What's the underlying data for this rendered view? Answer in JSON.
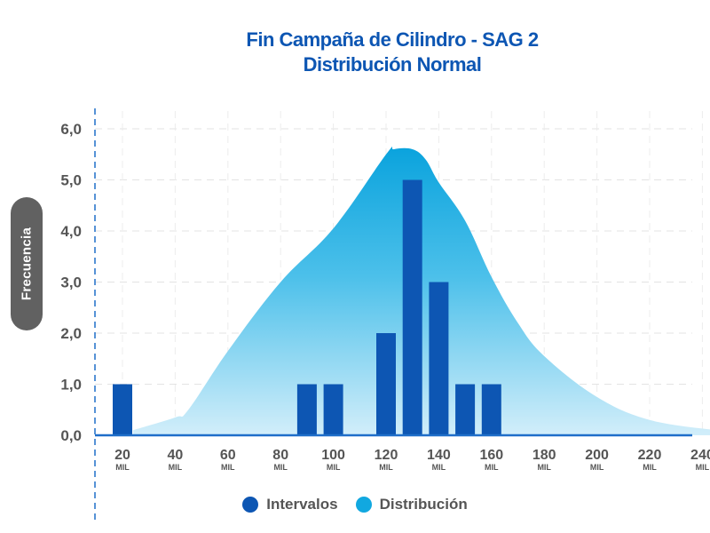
{
  "chart_data": {
    "type": "bar",
    "title": "Fin Campaña de Cilindro - SAG 2",
    "subtitle": "Distribución Normal",
    "xlabel": "",
    "ylabel": "Frecuencia",
    "x_unit_label": "MIL",
    "ylim": [
      0,
      6
    ],
    "xlim": [
      10,
      245
    ],
    "y_ticks": [
      "0,0",
      "1,0",
      "2,0",
      "3,0",
      "4,0",
      "5,0",
      "6,0"
    ],
    "y_tick_values": [
      0,
      1,
      2,
      3,
      4,
      5,
      6
    ],
    "x_ticks": [
      "20",
      "40",
      "60",
      "80",
      "100",
      "120",
      "140",
      "160",
      "180",
      "200",
      "220",
      "240"
    ],
    "x_tick_values": [
      20,
      40,
      60,
      80,
      100,
      120,
      140,
      160,
      180,
      200,
      220,
      240
    ],
    "grid": true,
    "legend_position": "bottom",
    "series": [
      {
        "name": "Intervalos",
        "kind": "bar",
        "color": "#0d56b3",
        "x": [
          20,
          90,
          100,
          120,
          130,
          140,
          150,
          160
        ],
        "values": [
          1,
          1,
          1,
          2,
          5,
          3,
          1,
          1
        ]
      },
      {
        "name": "Distribución",
        "kind": "area",
        "color": "#11a8e0",
        "x": [
          24,
          40,
          45,
          60,
          80,
          100,
          120,
          123,
          130,
          135,
          140,
          150,
          160,
          170,
          180,
          200,
          220,
          245
        ],
        "values": [
          0.1,
          0.35,
          0.5,
          1.65,
          3.0,
          4.05,
          5.5,
          5.6,
          5.6,
          5.4,
          4.95,
          4.2,
          3.1,
          2.2,
          1.55,
          0.75,
          0.3,
          0.1
        ]
      }
    ]
  }
}
